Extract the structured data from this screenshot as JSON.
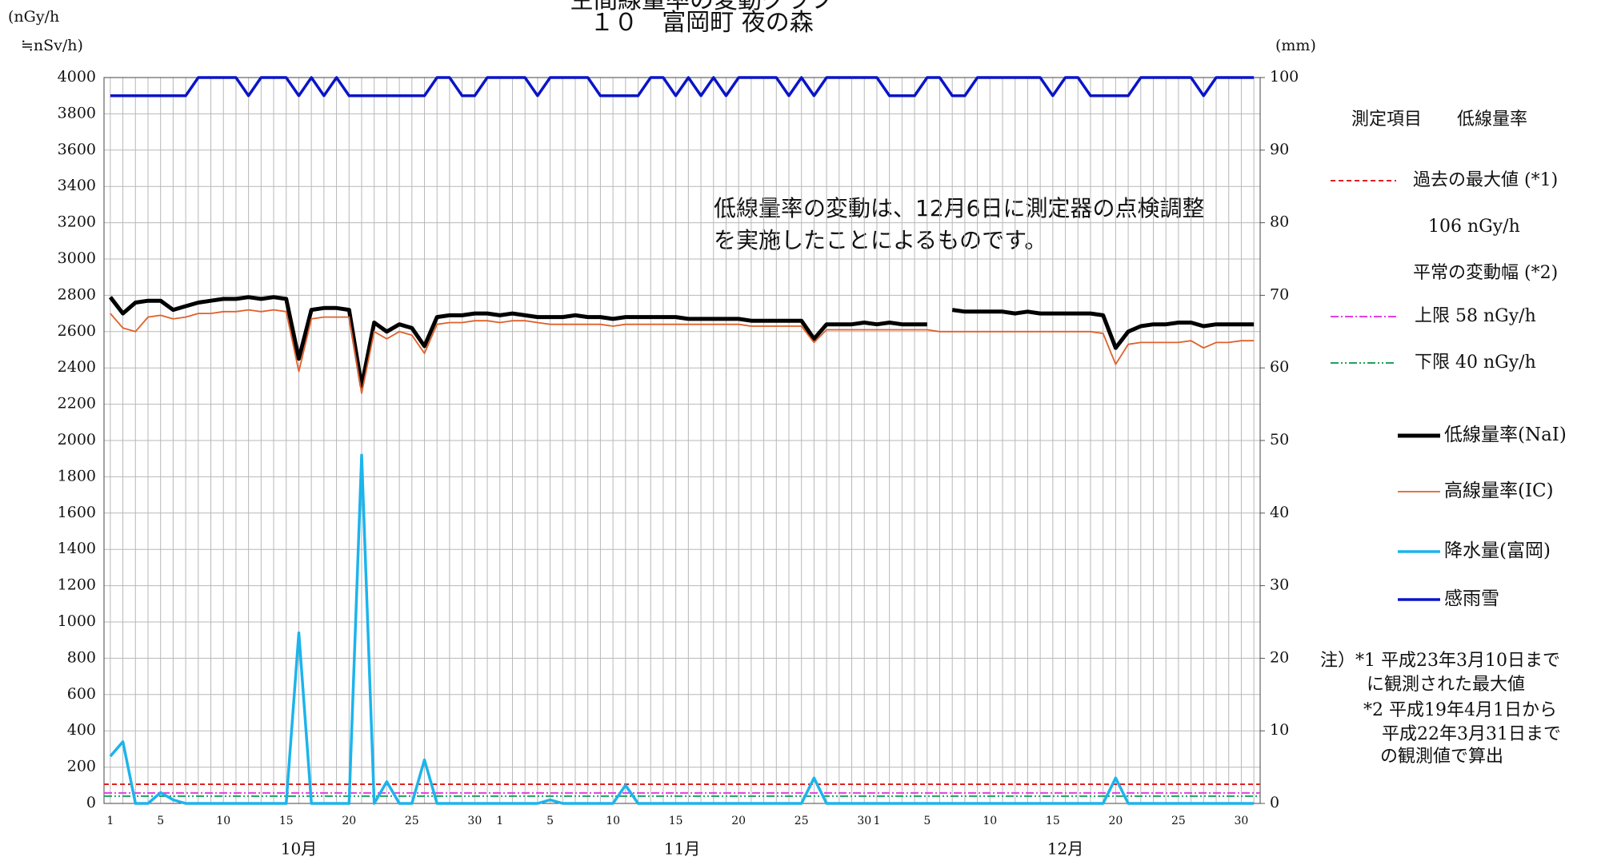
{
  "chart_data": {
    "type": "line",
    "title": "空間線量率の変動グラフ",
    "subtitle": "１０　富岡町 夜の森",
    "y_label": [
      "(nGy/h",
      "≒nSv/h)"
    ],
    "y2_label": "(mm)",
    "categories": [
      "1",
      null,
      null,
      null,
      "5",
      null,
      null,
      null,
      null,
      "10",
      null,
      null,
      null,
      null,
      "15",
      null,
      null,
      null,
      null,
      "20",
      null,
      null,
      null,
      null,
      "25",
      null,
      null,
      null,
      null,
      "30",
      null,
      "1",
      null,
      null,
      null,
      "5",
      null,
      null,
      null,
      null,
      "10",
      null,
      null,
      null,
      null,
      "15",
      null,
      null,
      null,
      null,
      "20",
      null,
      null,
      null,
      null,
      "25",
      null,
      null,
      null,
      null,
      "30",
      "1",
      null,
      null,
      null,
      "5",
      null,
      null,
      null,
      null,
      "10",
      null,
      null,
      null,
      null,
      "15",
      null,
      null,
      null,
      null,
      "20",
      null,
      null,
      null,
      null,
      "25",
      null,
      null,
      null,
      null,
      "30",
      null
    ],
    "months": [
      "10月",
      "11月",
      "12月"
    ],
    "month_lengths": [
      31,
      30,
      31
    ],
    "ylim": [
      0,
      4000
    ],
    "yticks": [
      0,
      200,
      400,
      600,
      800,
      1000,
      1200,
      1400,
      1600,
      1800,
      2000,
      2200,
      2400,
      2600,
      2800,
      3000,
      3200,
      3400,
      3600,
      3800,
      4000
    ],
    "y2lim": [
      0,
      100
    ],
    "y2ticks": [
      0,
      10,
      20,
      30,
      40,
      50,
      60,
      70,
      80,
      90,
      100
    ],
    "grid": true,
    "series": [
      {
        "name": "低線量率(NaI)",
        "color": "#000000",
        "axis": "y",
        "values": [
          2790,
          2700,
          2760,
          2770,
          2770,
          2720,
          2740,
          2760,
          2770,
          2780,
          2780,
          2790,
          2780,
          2790,
          2780,
          2450,
          2720,
          2730,
          2730,
          2720,
          2300,
          2650,
          2600,
          2640,
          2620,
          2520,
          2680,
          2690,
          2690,
          2700,
          2700,
          2690,
          2700,
          2690,
          2680,
          2680,
          2680,
          2690,
          2680,
          2680,
          2670,
          2680,
          2680,
          2680,
          2680,
          2680,
          2670,
          2670,
          2670,
          2670,
          2670,
          2660,
          2660,
          2660,
          2660,
          2660,
          2560,
          2640,
          2640,
          2640,
          2650,
          2640,
          2650,
          2640,
          2640,
          2640,
          null,
          2720,
          2710,
          2710,
          2710,
          2710,
          2700,
          2710,
          2700,
          2700,
          2700,
          2700,
          2700,
          2690,
          2510,
          2600,
          2630,
          2640,
          2640,
          2650,
          2650,
          2630,
          2640,
          2640,
          2640,
          2640
        ]
      },
      {
        "name": "高線量率(IC)",
        "color": "#e0602a",
        "axis": "y",
        "values": [
          2700,
          2620,
          2600,
          2680,
          2690,
          2670,
          2680,
          2700,
          2700,
          2710,
          2710,
          2720,
          2710,
          2720,
          2710,
          2380,
          2670,
          2680,
          2680,
          2680,
          2260,
          2600,
          2560,
          2600,
          2580,
          2480,
          2640,
          2650,
          2650,
          2660,
          2660,
          2650,
          2660,
          2660,
          2650,
          2640,
          2640,
          2640,
          2640,
          2640,
          2630,
          2640,
          2640,
          2640,
          2640,
          2640,
          2640,
          2640,
          2640,
          2640,
          2640,
          2630,
          2630,
          2630,
          2630,
          2630,
          2540,
          2610,
          2610,
          2610,
          2610,
          2610,
          2610,
          2610,
          2610,
          2610,
          2600,
          2600,
          2600,
          2600,
          2600,
          2600,
          2600,
          2600,
          2600,
          2600,
          2600,
          2600,
          2600,
          2590,
          2420,
          2530,
          2540,
          2540,
          2540,
          2540,
          2550,
          2510,
          2540,
          2540,
          2550,
          2550
        ]
      },
      {
        "name": "降水量(富岡)",
        "color": "#1cb4ec",
        "axis": "y2",
        "values": [
          6.5,
          8.5,
          0,
          0,
          1.5,
          0.5,
          0,
          0,
          0,
          0,
          0,
          0,
          0,
          0,
          0,
          23.5,
          0,
          0,
          0,
          0,
          48,
          0,
          3,
          0,
          0,
          6,
          0,
          0,
          0,
          0,
          0,
          0,
          0,
          0,
          0,
          0.5,
          0,
          0,
          0,
          0,
          0,
          2.5,
          0,
          0,
          0,
          0,
          0,
          0,
          0,
          0,
          0,
          0,
          0,
          0,
          0,
          0,
          3.5,
          0,
          0,
          0,
          0,
          0,
          0,
          0,
          0,
          0,
          0,
          0,
          0,
          0,
          0,
          0,
          0,
          0,
          0,
          0,
          0,
          0,
          0,
          0,
          3.5,
          0,
          0,
          0,
          0,
          0,
          0,
          0,
          0,
          0,
          0,
          0
        ]
      },
      {
        "name": "感雨雪",
        "color": "#0a14c8",
        "axis": "y2",
        "values": [
          97.5,
          97.5,
          97.5,
          97.5,
          97.5,
          97.5,
          97.5,
          100,
          100,
          100,
          100,
          97.5,
          100,
          100,
          100,
          97.5,
          100,
          97.5,
          100,
          97.5,
          97.5,
          97.5,
          97.5,
          97.5,
          97.5,
          97.5,
          100,
          100,
          97.5,
          97.5,
          100,
          100,
          100,
          100,
          97.5,
          100,
          100,
          100,
          100,
          97.5,
          97.5,
          97.5,
          97.5,
          100,
          100,
          97.5,
          100,
          97.5,
          100,
          97.5,
          100,
          100,
          100,
          100,
          97.5,
          100,
          97.5,
          100,
          100,
          100,
          100,
          100,
          97.5,
          97.5,
          97.5,
          100,
          100,
          97.5,
          97.5,
          100,
          100,
          100,
          100,
          100,
          100,
          97.5,
          100,
          100,
          97.5,
          97.5,
          97.5,
          97.5,
          100,
          100,
          100,
          100,
          100,
          97.5,
          100,
          100,
          100,
          100
        ]
      }
    ],
    "reference_lines": [
      {
        "name": "過去の最大値 (*1)",
        "value": 106,
        "label": "106 nGy/h",
        "color": "#e02020",
        "dash": "6 4"
      },
      {
        "value": 58,
        "label": "上限 58 nGy/h",
        "color": "#e040e0",
        "dash": "10 3 2 3"
      },
      {
        "value": 40,
        "label": "下限 40 nGy/h",
        "color": "#20a060",
        "dash": "10 3 2 3 2 3"
      }
    ],
    "legend_heading": "測定項目　　低線量率",
    "range_heading": "平常の変動幅 (*2)",
    "annotation": [
      "低線量率の変動は、12月6日に測定器の点検調整",
      "を実施したことによるものです。"
    ],
    "notes": [
      "注）*1 平成23年3月10日まで",
      "に観測された最大値",
      "*2 平成19年4月1日から",
      "平成22年3月31日まで",
      "の観測値で算出"
    ]
  }
}
